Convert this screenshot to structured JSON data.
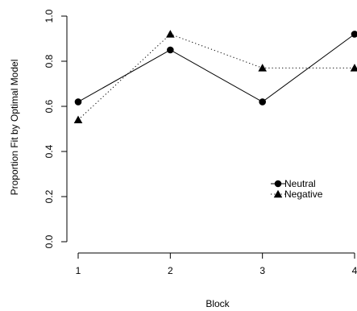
{
  "chart_data": {
    "type": "line",
    "xlabel": "Block",
    "ylabel": "Proportion Fit by Optimal Model",
    "x": [
      1,
      2,
      3,
      4
    ],
    "x_ticks": [
      "1",
      "2",
      "3",
      "4"
    ],
    "y_ticks": [
      "0.0",
      "0.2",
      "0.4",
      "0.6",
      "0.8",
      "1.0"
    ],
    "xlim": [
      1,
      4
    ],
    "ylim": [
      0,
      1
    ],
    "grid": false,
    "legend_position": "right, lower-middle",
    "series": [
      {
        "name": "Neutral",
        "marker": "circle",
        "line_style": "solid",
        "values": [
          0.62,
          0.85,
          0.62,
          0.92
        ]
      },
      {
        "name": "Negative",
        "marker": "triangle",
        "line_style": "dotted",
        "values": [
          0.54,
          0.92,
          0.77,
          0.77
        ]
      }
    ]
  }
}
